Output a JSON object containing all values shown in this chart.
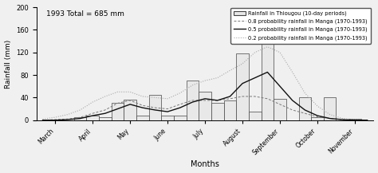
{
  "title": "1993 Total = 685 mm",
  "xlabel": "Months",
  "ylabel": "Rainfall (mm)",
  "ylim": [
    0,
    200
  ],
  "yticks": [
    0,
    40,
    80,
    120,
    160,
    200
  ],
  "months": [
    "March",
    "April",
    "May",
    "June",
    "July",
    "August",
    "September",
    "October",
    "November"
  ],
  "bar_values": [
    0,
    0,
    0,
    5,
    8,
    5,
    30,
    37,
    8,
    45,
    8,
    8,
    70,
    50,
    30,
    35,
    118,
    15,
    135,
    38,
    0,
    40,
    5,
    40,
    0,
    2,
    0
  ],
  "prob08_y": [
    0,
    1,
    2,
    5,
    12,
    18,
    30,
    35,
    26,
    22,
    20,
    28,
    35,
    35,
    35,
    38,
    42,
    42,
    38,
    28,
    18,
    12,
    6,
    3,
    1,
    0,
    0
  ],
  "prob05_y": [
    0,
    0,
    1,
    3,
    8,
    12,
    20,
    28,
    22,
    18,
    15,
    22,
    32,
    38,
    35,
    42,
    65,
    75,
    85,
    60,
    35,
    18,
    8,
    3,
    1,
    0,
    0
  ],
  "prob02_y": [
    2,
    5,
    10,
    18,
    32,
    42,
    50,
    50,
    42,
    40,
    38,
    48,
    62,
    70,
    75,
    88,
    100,
    120,
    130,
    120,
    85,
    48,
    25,
    10,
    3,
    1,
    0
  ],
  "bar_color": "#e8e8e8",
  "bar_edge_color": "#444444",
  "prob08_color": "#777777",
  "prob05_color": "#111111",
  "prob02_color": "#aaaaaa",
  "legend_labels": [
    "Rainfall in Thiougou (10-day periods)",
    "0.8 probability rainfall in Manga (1970-1993)",
    "0.5 probability rainfall in Manga (1970-1993)",
    "0.2 probability rainfall in Manga (1970-1993)"
  ],
  "background_color": "#f0f0f0"
}
